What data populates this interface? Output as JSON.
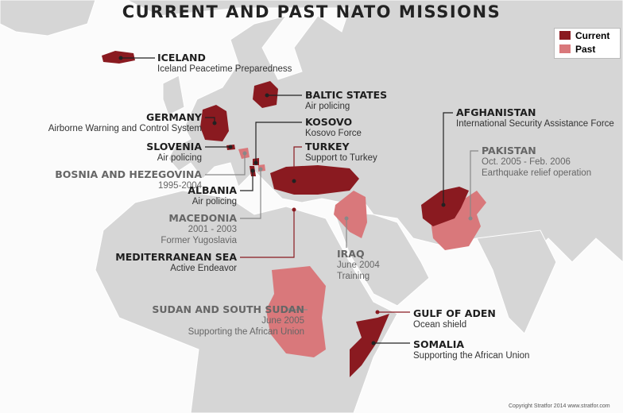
{
  "title": "CURRENT AND PAST NATO MISSIONS",
  "legend": {
    "current": "Current",
    "past": "Past"
  },
  "colors": {
    "current": "#8a1a20",
    "past": "#d9787b",
    "land": "#d6d6d6",
    "sea": "#fbfbfb"
  },
  "missions": [
    {
      "name": "ICELAND",
      "lines": [
        "Iceland Peacetime Preparedness"
      ],
      "status": "current"
    },
    {
      "name": "BALTIC STATES",
      "lines": [
        "Air policing"
      ],
      "status": "current"
    },
    {
      "name": "GERMANY",
      "lines": [
        "Airborne Warning and Control System"
      ],
      "status": "current"
    },
    {
      "name": "KOSOVO",
      "lines": [
        "Kosovo Force"
      ],
      "status": "current"
    },
    {
      "name": "SLOVENIA",
      "lines": [
        "Air policing"
      ],
      "status": "current"
    },
    {
      "name": "TURKEY",
      "lines": [
        "Support to Turkey"
      ],
      "status": "current"
    },
    {
      "name": "BOSNIA AND HEZEGOVINA",
      "lines": [
        "1995-2004"
      ],
      "status": "past"
    },
    {
      "name": "ALBANIA",
      "lines": [
        "Air policing"
      ],
      "status": "current"
    },
    {
      "name": "MACEDONIA",
      "lines": [
        "2001 - 2003",
        "Former Yugoslavia"
      ],
      "status": "past"
    },
    {
      "name": "MEDITERRANEAN SEA",
      "lines": [
        "Active Endeavor"
      ],
      "status": "current"
    },
    {
      "name": "IRAQ",
      "lines": [
        "June 2004",
        "Training"
      ],
      "status": "past"
    },
    {
      "name": "AFGHANISTAN",
      "lines": [
        "International Security Assistance Force"
      ],
      "status": "current"
    },
    {
      "name": "PAKISTAN",
      "lines": [
        "Oct. 2005 - Feb. 2006",
        "Earthquake relief operation"
      ],
      "status": "past"
    },
    {
      "name": "SUDAN AND SOUTH SUDAN",
      "lines": [
        "June 2005",
        "Supporting the African Union"
      ],
      "status": "past"
    },
    {
      "name": "GULF OF ADEN",
      "lines": [
        "Ocean shield"
      ],
      "status": "current"
    },
    {
      "name": "SOMALIA",
      "lines": [
        "Supporting the African Union"
      ],
      "status": "current"
    }
  ],
  "copyright": "Copyright Stratfor 2014    www.stratfor.com"
}
